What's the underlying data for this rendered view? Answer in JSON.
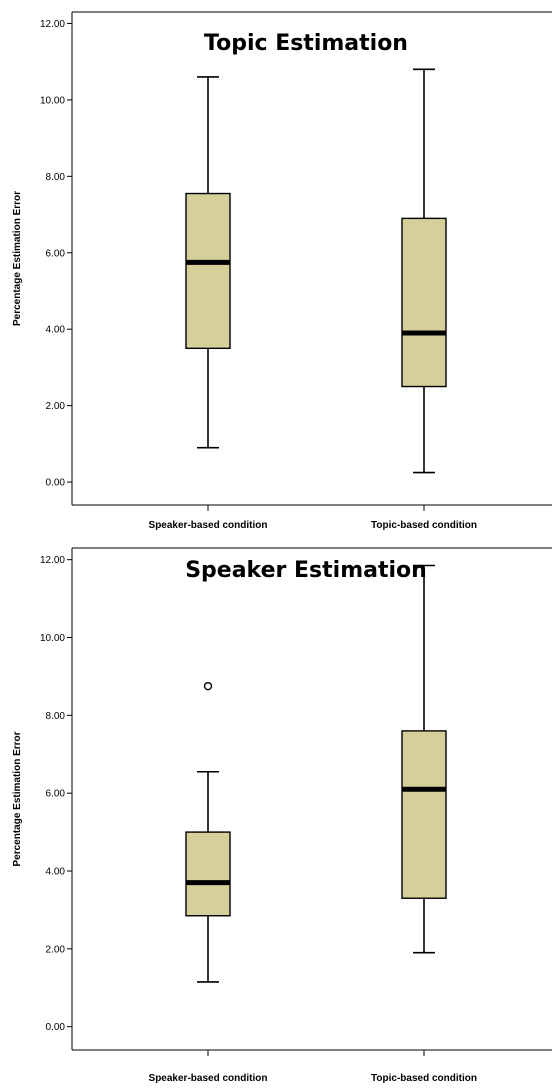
{
  "chart_data": [
    {
      "type": "boxplot",
      "title": "Topic Estimation",
      "xlabel": "",
      "ylabel": "Percentage Estimation Error",
      "ylim": [
        -0.6,
        12.3
      ],
      "yticks": [
        "0.00",
        "2.00",
        "4.00",
        "6.00",
        "8.00",
        "10.00",
        "12.00"
      ],
      "categories": [
        "Speaker-based condition",
        "Topic-based condition"
      ],
      "boxes": [
        {
          "min": 0.9,
          "q1": 3.5,
          "median": 5.75,
          "q3": 7.55,
          "max": 10.6,
          "outliers": []
        },
        {
          "min": 0.25,
          "q1": 2.5,
          "median": 3.9,
          "q3": 6.9,
          "max": 10.8,
          "outliers": []
        }
      ],
      "box_color": "#d5cf9a",
      "grid": false
    },
    {
      "type": "boxplot",
      "title": "Speaker Estimation",
      "xlabel": "",
      "ylabel": "Percentage Estimation Error",
      "ylim": [
        -0.6,
        12.3
      ],
      "yticks": [
        "0.00",
        "2.00",
        "4.00",
        "6.00",
        "8.00",
        "10.00",
        "12.00"
      ],
      "categories": [
        "Speaker-based condition",
        "Topic-based condition"
      ],
      "boxes": [
        {
          "min": 1.15,
          "q1": 2.85,
          "median": 3.7,
          "q3": 5.0,
          "max": 6.55,
          "outliers": [
            8.75
          ]
        },
        {
          "min": 1.9,
          "q1": 3.3,
          "median": 6.1,
          "q3": 7.6,
          "max": 11.85,
          "outliers": []
        }
      ],
      "box_color": "#d5cf9a",
      "grid": false
    }
  ]
}
